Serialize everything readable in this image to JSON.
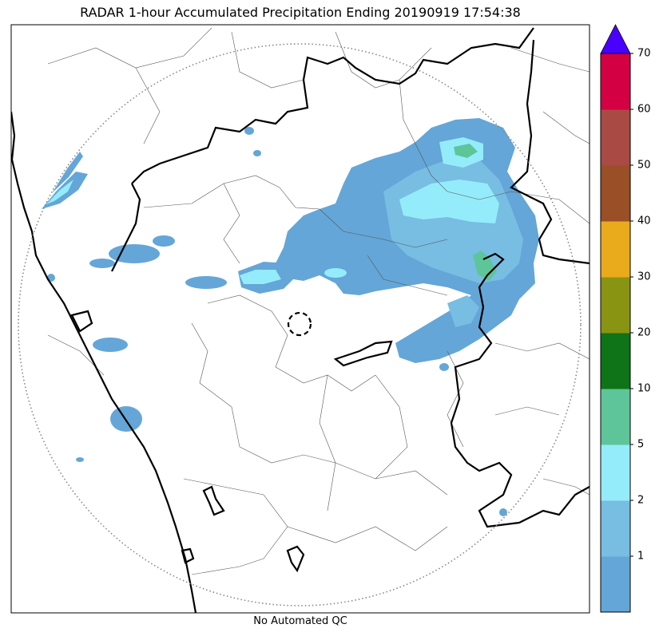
{
  "title": "RADAR 1-hour Accumulated Precipitation Ending 20190919 17:54:38",
  "footer": "No Automated QC",
  "colorbar": {
    "levels": [
      {
        "color": "#64a6d7"
      },
      {
        "label": "1",
        "color": "#78bde2"
      },
      {
        "label": "2",
        "color": "#94ecfb"
      },
      {
        "label": "5",
        "color": "#5ec59a"
      },
      {
        "label": "10",
        "color": "#0f7318"
      },
      {
        "label": "20",
        "color": "#8a9413"
      },
      {
        "label": "30",
        "color": "#e9aa1b"
      },
      {
        "label": "40",
        "color": "#9a4f26"
      },
      {
        "label": "50",
        "color": "#a94a44"
      },
      {
        "label": "60",
        "color": "#d30043"
      },
      {
        "label": "70"
      }
    ],
    "extend_color": "#4a00ff"
  }
}
